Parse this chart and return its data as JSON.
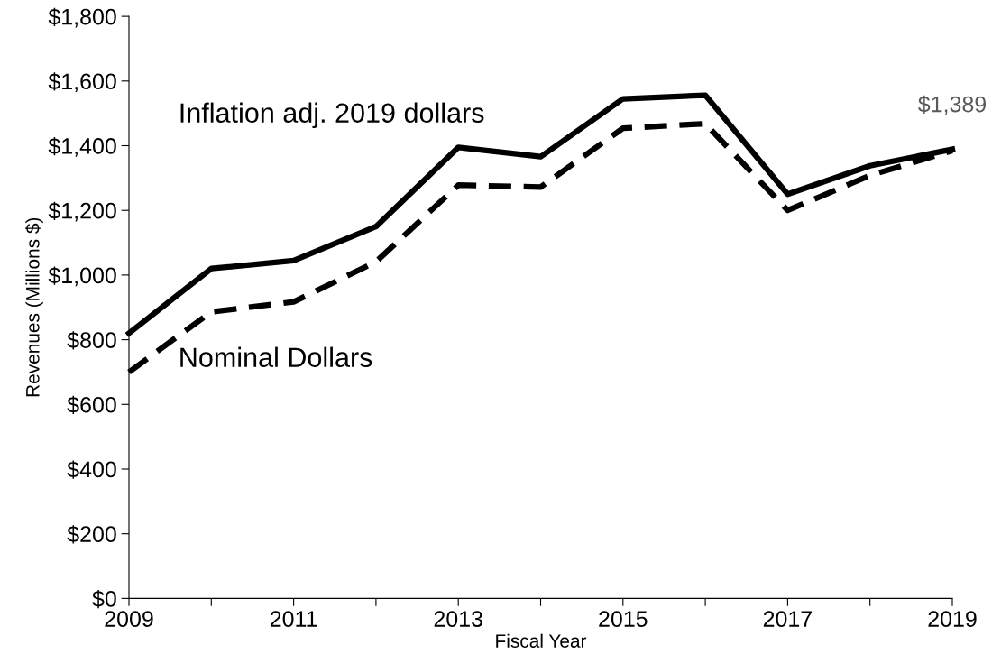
{
  "chart_data": {
    "type": "line",
    "xlabel": "Fiscal Year",
    "ylabel": "Revenues (Millions $)",
    "x": [
      2009,
      2010,
      2011,
      2012,
      2013,
      2014,
      2015,
      2016,
      2017,
      2018,
      2019
    ],
    "series": [
      {
        "name": "Inflation adj. 2019 dollars",
        "color": "#000000",
        "line_style": "solid",
        "values": [
          820,
          1020,
          1045,
          1150,
          1395,
          1366,
          1545,
          1556,
          1250,
          1338,
          1389
        ],
        "value_labels": [
          null,
          null,
          null,
          null,
          null,
          null,
          null,
          null,
          null,
          null,
          "$1,389"
        ]
      },
      {
        "name": "Nominal Dollars",
        "color": "#000000",
        "line_style": "dashed",
        "values": [
          700,
          886,
          917,
          1041,
          1278,
          1272,
          1454,
          1468,
          1200,
          1308,
          1385
        ]
      }
    ],
    "xlim": [
      2009,
      2019
    ],
    "xticks": [
      2009,
      {
        "value": 2010,
        "label": null
      },
      2011,
      {
        "value": 2012,
        "label": null
      },
      2013,
      {
        "value": 2014,
        "label": null
      },
      2015,
      {
        "value": 2016,
        "label": null
      },
      2017,
      {
        "value": 2018,
        "label": null
      },
      2019
    ],
    "ylim": [
      0,
      1800
    ],
    "yticks": [
      {
        "value": 0,
        "label": "$0"
      },
      {
        "value": 200,
        "label": "$200"
      },
      {
        "value": 400,
        "label": "$400"
      },
      {
        "value": 600,
        "label": "$600"
      },
      {
        "value": 800,
        "label": "$800"
      },
      {
        "value": 1000,
        "label": "$1,000"
      },
      {
        "value": 1200,
        "label": "$1,200"
      },
      {
        "value": 1400,
        "label": "$1,400"
      },
      {
        "value": 1600,
        "label": "$1,600"
      },
      {
        "value": 1800,
        "label": "$1,800"
      }
    ],
    "grid": false,
    "legend": false,
    "marker": "none"
  }
}
